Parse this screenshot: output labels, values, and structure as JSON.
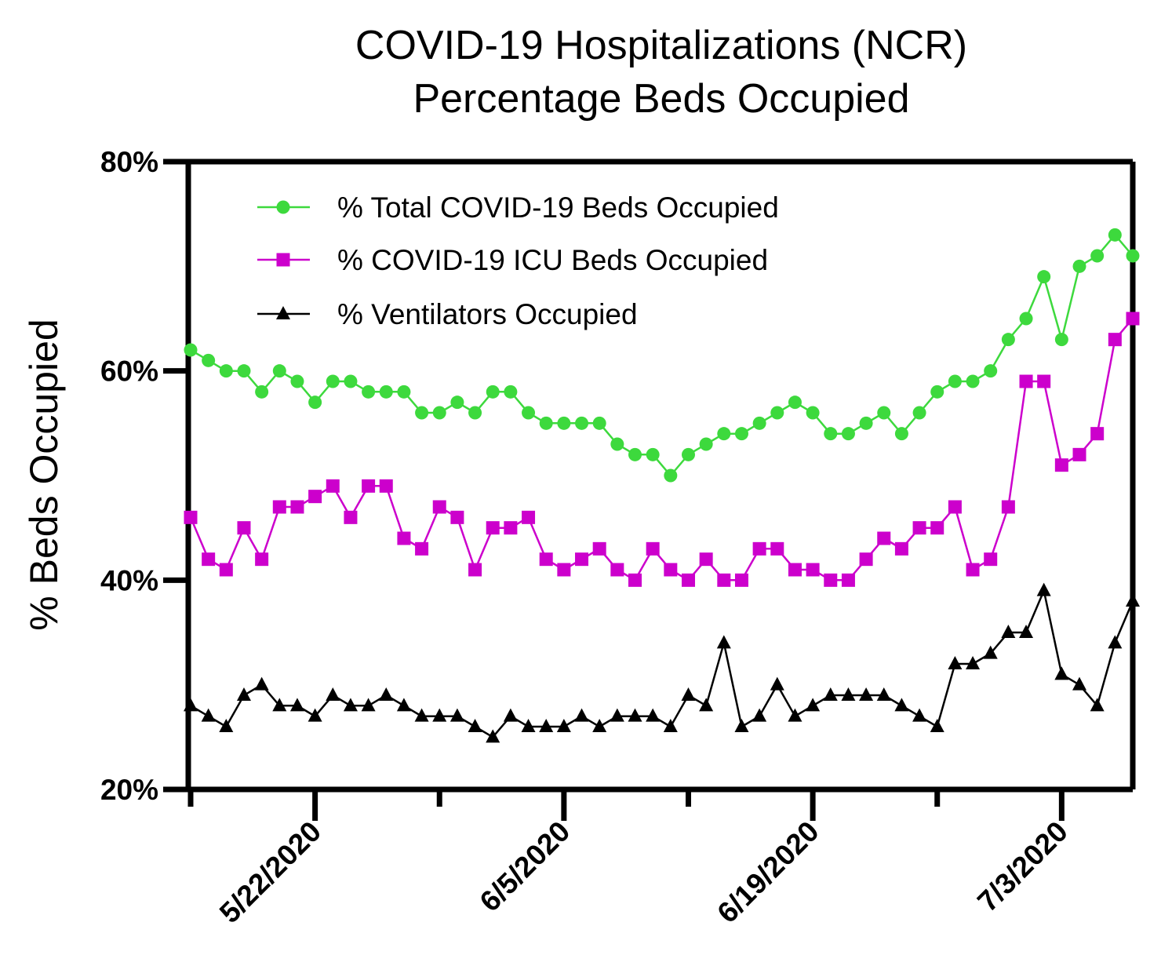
{
  "chart_data": {
    "type": "line",
    "title": "COVID-19 Hospitalizations (NCR)",
    "subtitle": "Percentage Beds Occupied",
    "ylabel": "% Beds Occupied",
    "xlabel": "",
    "ylim": [
      20,
      80
    ],
    "y_ticks": [
      "20%",
      "40%",
      "60%",
      "80%"
    ],
    "x_ticks": [
      "5/22/2020",
      "6/5/2020",
      "6/19/2020",
      "7/3/2020"
    ],
    "grid": false,
    "legend_position": "top-left",
    "series": [
      {
        "name": "% Total COVID-19 Beds Occupied",
        "color": "#3DD93D",
        "marker": "circle",
        "values": [
          62,
          61,
          60,
          60,
          58,
          60,
          59,
          57,
          59,
          59,
          58,
          58,
          58,
          56,
          56,
          57,
          56,
          58,
          58,
          56,
          55,
          55,
          55,
          55,
          53,
          52,
          52,
          50,
          52,
          53,
          54,
          54,
          55,
          56,
          57,
          56,
          54,
          54,
          55,
          56,
          54,
          56,
          58,
          59,
          59,
          60,
          63,
          65,
          69,
          63,
          70,
          71,
          73,
          71
        ]
      },
      {
        "name": "% COVID-19 ICU Beds Occupied",
        "color": "#CC00CC",
        "marker": "square",
        "values": [
          46,
          42,
          41,
          45,
          42,
          47,
          47,
          48,
          49,
          46,
          49,
          49,
          44,
          43,
          47,
          46,
          41,
          45,
          45,
          46,
          42,
          41,
          42,
          43,
          41,
          40,
          43,
          41,
          40,
          42,
          40,
          40,
          43,
          43,
          41,
          41,
          40,
          40,
          42,
          44,
          43,
          45,
          45,
          47,
          41,
          42,
          47,
          59,
          59,
          51,
          52,
          54,
          63,
          65
        ]
      },
      {
        "name": "% Ventilators Occupied",
        "color": "#000000",
        "marker": "triangle",
        "values": [
          28,
          27,
          26,
          29,
          30,
          28,
          28,
          27,
          29,
          28,
          28,
          29,
          28,
          27,
          27,
          27,
          26,
          25,
          27,
          26,
          26,
          26,
          27,
          26,
          27,
          27,
          27,
          26,
          29,
          28,
          34,
          26,
          27,
          30,
          27,
          28,
          29,
          29,
          29,
          29,
          28,
          27,
          26,
          32,
          32,
          33,
          35,
          35,
          39,
          31,
          30,
          28,
          34,
          38
        ]
      }
    ]
  }
}
